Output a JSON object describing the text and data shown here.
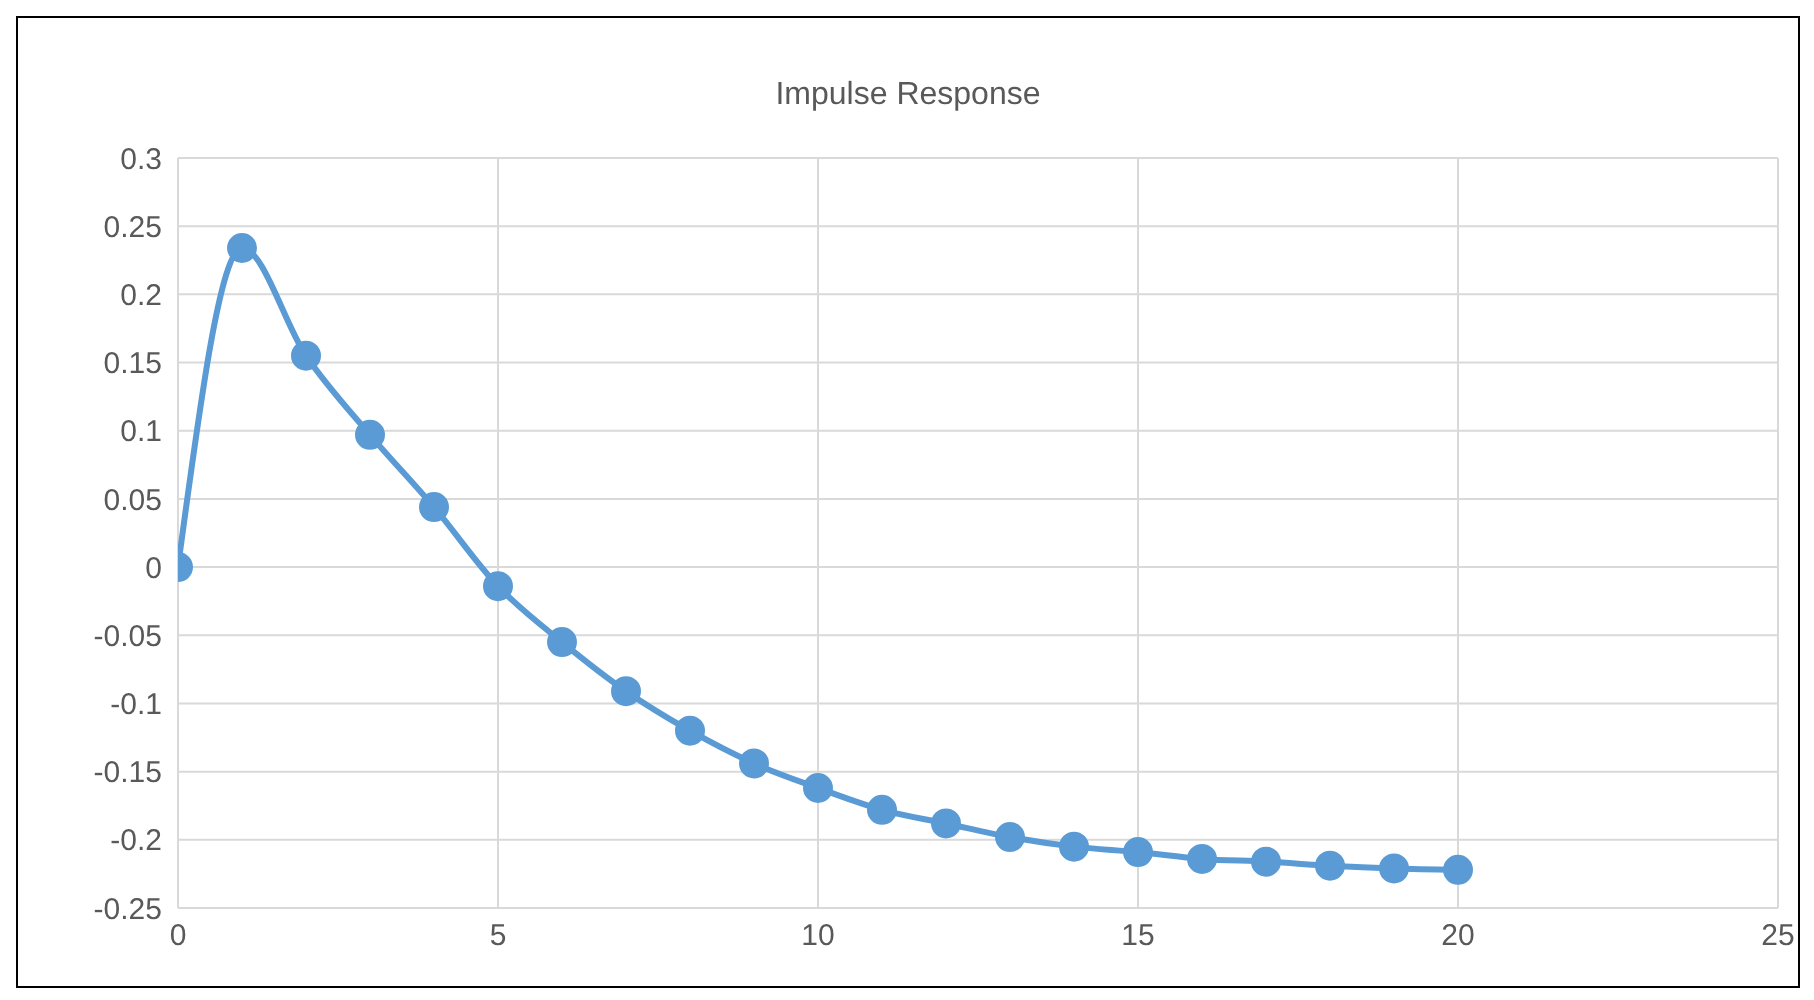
{
  "chart_data": {
    "type": "line",
    "title": "Impulse Response",
    "x": [
      0,
      1,
      2,
      3,
      4,
      5,
      6,
      7,
      8,
      9,
      10,
      11,
      12,
      13,
      14,
      15,
      16,
      17,
      18,
      19,
      20
    ],
    "series": [
      {
        "color": "#5b9bd5",
        "values": [
          0,
          0.234,
          0.155,
          0.097,
          0.044,
          -0.014,
          -0.055,
          -0.091,
          -0.12,
          -0.144,
          -0.162,
          -0.178,
          -0.188,
          -0.198,
          -0.205,
          -0.209,
          -0.214,
          -0.216,
          -0.219,
          -0.221,
          -0.222
        ]
      }
    ],
    "xlim": [
      0,
      25
    ],
    "xticks": [
      0,
      5,
      10,
      15,
      20,
      25
    ],
    "ylim": [
      -0.25,
      0.3
    ],
    "yticks": [
      -0.25,
      -0.2,
      -0.15,
      -0.1,
      -0.05,
      0,
      0.05,
      0.1,
      0.15,
      0.2,
      0.25,
      0.3
    ],
    "grid": true,
    "marker": "circle",
    "line_style": "solid",
    "legend": false
  }
}
